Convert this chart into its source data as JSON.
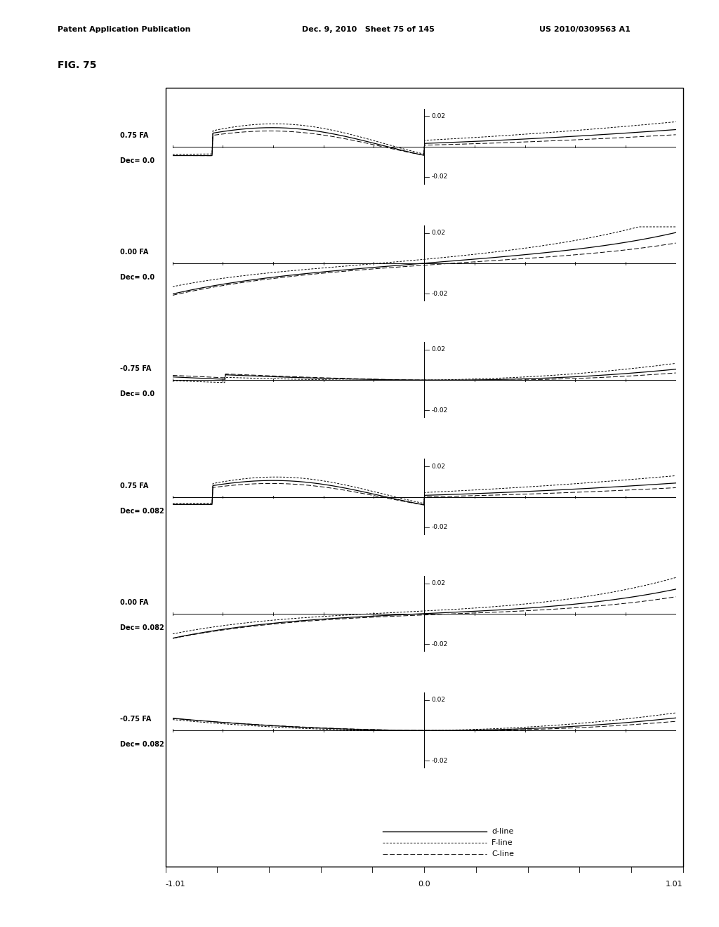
{
  "fig_label": "FIG. 75",
  "header_left": "Patent Application Publication",
  "header_mid": "Dec. 9, 2010   Sheet 75 of 145",
  "header_right": "US 2010/0309563 A1",
  "panels": [
    {
      "label1": "0.75 FA",
      "label2": "Dec= 0.0"
    },
    {
      "label1": "0.00 FA",
      "label2": "Dec= 0.0"
    },
    {
      "label1": "-0.75 FA",
      "label2": "Dec= 0.0"
    },
    {
      "label1": "0.75 FA",
      "label2": "Dec= 0.082"
    },
    {
      "label1": "0.00 FA",
      "label2": "Dec= 0.082"
    },
    {
      "label1": "-0.75 FA",
      "label2": "Dec= 0.082"
    }
  ],
  "xlim": [
    -1.01,
    1.01
  ],
  "ylim": [
    -0.025,
    0.025
  ],
  "background_color": "#ffffff"
}
